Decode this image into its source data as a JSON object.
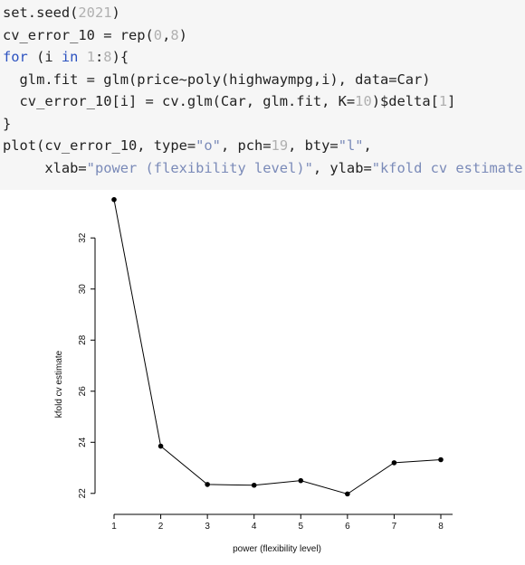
{
  "code": {
    "lines": [
      [
        {
          "t": "set.seed(",
          "c": ""
        },
        {
          "t": "2021",
          "c": "num"
        },
        {
          "t": ")",
          "c": ""
        }
      ],
      [
        {
          "t": "cv_error_10 = rep(",
          "c": ""
        },
        {
          "t": "0",
          "c": "num"
        },
        {
          "t": ",",
          "c": ""
        },
        {
          "t": "8",
          "c": "num"
        },
        {
          "t": ")",
          "c": ""
        }
      ],
      [
        {
          "t": "for",
          "c": "kw"
        },
        {
          "t": " (i ",
          "c": ""
        },
        {
          "t": "in",
          "c": "kw"
        },
        {
          "t": " ",
          "c": ""
        },
        {
          "t": "1",
          "c": "num"
        },
        {
          "t": ":",
          "c": ""
        },
        {
          "t": "8",
          "c": "num"
        },
        {
          "t": "){",
          "c": ""
        }
      ],
      [
        {
          "t": "  glm.fit = glm(price~poly(highwaympg,i), data=Car)",
          "c": ""
        }
      ],
      [
        {
          "t": "  cv_error_10[i] = cv.glm(Car, glm.fit, K=",
          "c": ""
        },
        {
          "t": "10",
          "c": "num"
        },
        {
          "t": ")$delta[",
          "c": ""
        },
        {
          "t": "1",
          "c": "num"
        },
        {
          "t": "]",
          "c": ""
        }
      ],
      [
        {
          "t": "}",
          "c": ""
        }
      ],
      [
        {
          "t": "plot(cv_error_10, type=",
          "c": ""
        },
        {
          "t": "\"o\"",
          "c": "str"
        },
        {
          "t": ", pch=",
          "c": ""
        },
        {
          "t": "19",
          "c": "num"
        },
        {
          "t": ", bty=",
          "c": ""
        },
        {
          "t": "\"l\"",
          "c": "str"
        },
        {
          "t": ",",
          "c": ""
        }
      ],
      [
        {
          "t": "     xlab=",
          "c": ""
        },
        {
          "t": "\"power (flexibility level)\"",
          "c": "str"
        },
        {
          "t": ", ylab=",
          "c": ""
        },
        {
          "t": "\"kfold cv estimate\"",
          "c": "str"
        },
        {
          "t": ")",
          "c": ""
        }
      ]
    ]
  },
  "chart_data": {
    "type": "line",
    "x": [
      1,
      2,
      3,
      4,
      5,
      6,
      7,
      8
    ],
    "series": [
      {
        "values": [
          33.5,
          23.85,
          22.35,
          22.32,
          22.5,
          21.98,
          23.2,
          23.32
        ]
      }
    ],
    "xlabel": "power (flexibility level)",
    "ylabel": "kfold cv estimate",
    "xticks": [
      "1",
      "2",
      "3",
      "4",
      "5",
      "6",
      "7",
      "8"
    ],
    "yticks": [
      "22",
      "24",
      "26",
      "28",
      "30",
      "32"
    ],
    "xlim": [
      1,
      8
    ],
    "ylim": [
      22,
      32
    ],
    "box": "l",
    "grid": false,
    "colors": {
      "line": "#000000",
      "points": "#000000"
    }
  }
}
